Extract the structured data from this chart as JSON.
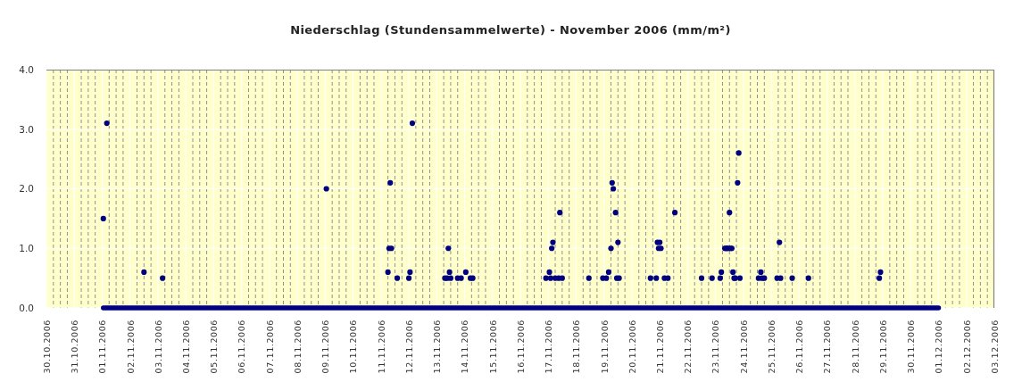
{
  "chart_data": {
    "type": "scatter",
    "title": "Niederschlag (Stundensammelwerte) - November 2006 (mm/m²)",
    "xlim": [
      "2006-10-30",
      "2006-12-03"
    ],
    "xticks": [
      {
        "value": "2006-10-30",
        "label": "30.10.2006"
      },
      {
        "value": "2006-10-30T06:00",
        "label": null
      },
      {
        "value": "2006-10-30T12:00",
        "label": null
      },
      {
        "value": "2006-10-30T18:00",
        "label": null
      },
      {
        "value": "2006-10-31",
        "label": "31.10.2006"
      },
      {
        "value": "2006-10-31T06:00",
        "label": null
      },
      {
        "value": "2006-10-31T12:00",
        "label": null
      },
      {
        "value": "2006-10-31T18:00",
        "label": null
      },
      {
        "value": "2006-11-01",
        "label": "01.11.2006"
      },
      {
        "value": "2006-11-01T06:00",
        "label": null
      },
      {
        "value": "2006-11-01T12:00",
        "label": null
      },
      {
        "value": "2006-11-01T18:00",
        "label": null
      },
      {
        "value": "2006-11-02",
        "label": "02.11.2006"
      },
      {
        "value": "2006-11-02T06:00",
        "label": null
      },
      {
        "value": "2006-11-02T12:00",
        "label": null
      },
      {
        "value": "2006-11-02T18:00",
        "label": null
      },
      {
        "value": "2006-11-03",
        "label": "03.11.2006"
      },
      {
        "value": "2006-11-03T06:00",
        "label": null
      },
      {
        "value": "2006-11-03T12:00",
        "label": null
      },
      {
        "value": "2006-11-03T18:00",
        "label": null
      },
      {
        "value": "2006-11-04",
        "label": "04.11.2006"
      },
      {
        "value": "2006-11-04T06:00",
        "label": null
      },
      {
        "value": "2006-11-04T12:00",
        "label": null
      },
      {
        "value": "2006-11-04T18:00",
        "label": null
      },
      {
        "value": "2006-11-05",
        "label": "05.11.2006"
      },
      {
        "value": "2006-11-05T06:00",
        "label": null
      },
      {
        "value": "2006-11-05T12:00",
        "label": null
      },
      {
        "value": "2006-11-05T18:00",
        "label": null
      },
      {
        "value": "2006-11-06",
        "label": "06.11.2006"
      },
      {
        "value": "2006-11-06T06:00",
        "label": null
      },
      {
        "value": "2006-11-06T12:00",
        "label": null
      },
      {
        "value": "2006-11-06T18:00",
        "label": null
      },
      {
        "value": "2006-11-07",
        "label": "07.11.2006"
      },
      {
        "value": "2006-11-07T06:00",
        "label": null
      },
      {
        "value": "2006-11-07T12:00",
        "label": null
      },
      {
        "value": "2006-11-07T18:00",
        "label": null
      },
      {
        "value": "2006-11-08",
        "label": "08.11.2006"
      },
      {
        "value": "2006-11-08T06:00",
        "label": null
      },
      {
        "value": "2006-11-08T12:00",
        "label": null
      },
      {
        "value": "2006-11-08T18:00",
        "label": null
      },
      {
        "value": "2006-11-09",
        "label": "09.11.2006"
      },
      {
        "value": "2006-11-09T06:00",
        "label": null
      },
      {
        "value": "2006-11-09T12:00",
        "label": null
      },
      {
        "value": "2006-11-09T18:00",
        "label": null
      },
      {
        "value": "2006-11-10",
        "label": "10.11.2006"
      },
      {
        "value": "2006-11-10T06:00",
        "label": null
      },
      {
        "value": "2006-11-10T12:00",
        "label": null
      },
      {
        "value": "2006-11-10T18:00",
        "label": null
      },
      {
        "value": "2006-11-11",
        "label": "11.11.2006"
      },
      {
        "value": "2006-11-11T06:00",
        "label": null
      },
      {
        "value": "2006-11-11T12:00",
        "label": null
      },
      {
        "value": "2006-11-11T18:00",
        "label": null
      },
      {
        "value": "2006-11-12",
        "label": "12.11.2006"
      },
      {
        "value": "2006-11-12T06:00",
        "label": null
      },
      {
        "value": "2006-11-12T12:00",
        "label": null
      },
      {
        "value": "2006-11-12T18:00",
        "label": null
      },
      {
        "value": "2006-11-13",
        "label": "13.11.2006"
      },
      {
        "value": "2006-11-13T06:00",
        "label": null
      },
      {
        "value": "2006-11-13T12:00",
        "label": null
      },
      {
        "value": "2006-11-13T18:00",
        "label": null
      },
      {
        "value": "2006-11-14",
        "label": "14.11.2006"
      },
      {
        "value": "2006-11-14T06:00",
        "label": null
      },
      {
        "value": "2006-11-14T12:00",
        "label": null
      },
      {
        "value": "2006-11-14T18:00",
        "label": null
      },
      {
        "value": "2006-11-15",
        "label": "15.11.2006"
      },
      {
        "value": "2006-11-15T06:00",
        "label": null
      },
      {
        "value": "2006-11-15T12:00",
        "label": null
      },
      {
        "value": "2006-11-15T18:00",
        "label": null
      },
      {
        "value": "2006-11-16",
        "label": "16.11.2006"
      },
      {
        "value": "2006-11-16T06:00",
        "label": null
      },
      {
        "value": "2006-11-16T12:00",
        "label": null
      },
      {
        "value": "2006-11-16T18:00",
        "label": null
      },
      {
        "value": "2006-11-17",
        "label": "17.11.2006"
      },
      {
        "value": "2006-11-17T06:00",
        "label": null
      },
      {
        "value": "2006-11-17T12:00",
        "label": null
      },
      {
        "value": "2006-11-17T18:00",
        "label": null
      },
      {
        "value": "2006-11-18",
        "label": "18.11.2006"
      },
      {
        "value": "2006-11-18T06:00",
        "label": null
      },
      {
        "value": "2006-11-18T12:00",
        "label": null
      },
      {
        "value": "2006-11-18T18:00",
        "label": null
      },
      {
        "value": "2006-11-19",
        "label": "19.11.2006"
      },
      {
        "value": "2006-11-19T06:00",
        "label": null
      },
      {
        "value": "2006-11-19T12:00",
        "label": null
      },
      {
        "value": "2006-11-19T18:00",
        "label": null
      },
      {
        "value": "2006-11-20",
        "label": "20.11.2006"
      },
      {
        "value": "2006-11-20T06:00",
        "label": null
      },
      {
        "value": "2006-11-20T12:00",
        "label": null
      },
      {
        "value": "2006-11-20T18:00",
        "label": null
      },
      {
        "value": "2006-11-21",
        "label": "21.11.2006"
      },
      {
        "value": "2006-11-21T06:00",
        "label": null
      },
      {
        "value": "2006-11-21T12:00",
        "label": null
      },
      {
        "value": "2006-11-21T18:00",
        "label": null
      },
      {
        "value": "2006-11-22",
        "label": "22.11.2006"
      },
      {
        "value": "2006-11-22T06:00",
        "label": null
      },
      {
        "value": "2006-11-22T12:00",
        "label": null
      },
      {
        "value": "2006-11-22T18:00",
        "label": null
      },
      {
        "value": "2006-11-23",
        "label": "23.11.2006"
      },
      {
        "value": "2006-11-23T06:00",
        "label": null
      },
      {
        "value": "2006-11-23T12:00",
        "label": null
      },
      {
        "value": "2006-11-23T18:00",
        "label": null
      },
      {
        "value": "2006-11-24",
        "label": "24.11.2006"
      },
      {
        "value": "2006-11-24T06:00",
        "label": null
      },
      {
        "value": "2006-11-24T12:00",
        "label": null
      },
      {
        "value": "2006-11-24T18:00",
        "label": null
      },
      {
        "value": "2006-11-25",
        "label": "25.11.2006"
      },
      {
        "value": "2006-11-25T06:00",
        "label": null
      },
      {
        "value": "2006-11-25T12:00",
        "label": null
      },
      {
        "value": "2006-11-25T18:00",
        "label": null
      },
      {
        "value": "2006-11-26",
        "label": "26.11.2006"
      },
      {
        "value": "2006-11-26T06:00",
        "label": null
      },
      {
        "value": "2006-11-26T12:00",
        "label": null
      },
      {
        "value": "2006-11-26T18:00",
        "label": null
      },
      {
        "value": "2006-11-27",
        "label": "27.11.2006"
      },
      {
        "value": "2006-11-27T06:00",
        "label": null
      },
      {
        "value": "2006-11-27T12:00",
        "label": null
      },
      {
        "value": "2006-11-27T18:00",
        "label": null
      },
      {
        "value": "2006-11-28",
        "label": "28.11.2006"
      },
      {
        "value": "2006-11-28T06:00",
        "label": null
      },
      {
        "value": "2006-11-28T12:00",
        "label": null
      },
      {
        "value": "2006-11-28T18:00",
        "label": null
      },
      {
        "value": "2006-11-29",
        "label": "29.11.2006"
      },
      {
        "value": "2006-11-29T06:00",
        "label": null
      },
      {
        "value": "2006-11-29T12:00",
        "label": null
      },
      {
        "value": "2006-11-29T18:00",
        "label": null
      },
      {
        "value": "2006-11-30",
        "label": "30.11.2006"
      },
      {
        "value": "2006-11-30T06:00",
        "label": null
      },
      {
        "value": "2006-11-30T12:00",
        "label": null
      },
      {
        "value": "2006-11-30T18:00",
        "label": null
      },
      {
        "value": "2006-12-01",
        "label": "01.12.2006"
      },
      {
        "value": "2006-12-01T06:00",
        "label": null
      },
      {
        "value": "2006-12-01T12:00",
        "label": null
      },
      {
        "value": "2006-12-01T18:00",
        "label": null
      },
      {
        "value": "2006-12-02",
        "label": "02.12.2006"
      },
      {
        "value": "2006-12-02T06:00",
        "label": null
      },
      {
        "value": "2006-12-02T12:00",
        "label": null
      },
      {
        "value": "2006-12-02T18:00",
        "label": null
      },
      {
        "value": "2006-12-03",
        "label": "03.12.2006"
      }
    ],
    "ylim": [
      0,
      4
    ],
    "yticks": [
      {
        "value": 0,
        "label": "0.0"
      },
      {
        "value": 1,
        "label": "1.0"
      },
      {
        "value": 2,
        "label": "2.0"
      },
      {
        "value": 3,
        "label": "3.0"
      },
      {
        "value": 4,
        "label": "4.0"
      }
    ],
    "grid": true,
    "marker": "circle",
    "series": [
      {
        "type": "line",
        "marker": "none",
        "color": "#000080",
        "x": [
          "2006-11-01T01:00",
          "2006-12-01T00:00"
        ],
        "values": [
          0,
          0
        ]
      },
      {
        "color": "#000080",
        "x": [
          "2006-11-01T01:00",
          "2006-11-01T04:00",
          "2006-11-02T12:00",
          "2006-11-03T04:00",
          "2006-11-09T01:00",
          "2006-11-11T06:00",
          "2006-11-11T07:00",
          "2006-11-11T08:00",
          "2006-11-11T09:00",
          "2006-11-11T14:00",
          "2006-11-12T00:00",
          "2006-11-12T01:00",
          "2006-11-12T03:00",
          "2006-11-13T07:00",
          "2006-11-13T09:00",
          "2006-11-13T10:00",
          "2006-11-13T11:00",
          "2006-11-13T12:00",
          "2006-11-13T18:00",
          "2006-11-13T21:00",
          "2006-11-14T01:00",
          "2006-11-14T05:00",
          "2006-11-14T07:00",
          "2006-11-16T22:00",
          "2006-11-17T01:00",
          "2006-11-17T02:00",
          "2006-11-17T03:00",
          "2006-11-17T04:00",
          "2006-11-17T06:00",
          "2006-11-17T09:00",
          "2006-11-17T10:00",
          "2006-11-17T12:00",
          "2006-11-18T11:00",
          "2006-11-18T23:00",
          "2006-11-19T02:00",
          "2006-11-19T04:00",
          "2006-11-19T06:00",
          "2006-11-19T07:00",
          "2006-11-19T08:00",
          "2006-11-19T10:00",
          "2006-11-19T11:00",
          "2006-11-19T12:00",
          "2006-11-19T13:00",
          "2006-11-20T16:00",
          "2006-11-20T21:00",
          "2006-11-20T22:00",
          "2006-11-20T23:00",
          "2006-11-21T00:00",
          "2006-11-21T01:00",
          "2006-11-21T04:00",
          "2006-11-21T07:00",
          "2006-11-21T13:00",
          "2006-11-22T12:00",
          "2006-11-22T21:00",
          "2006-11-23T04:00",
          "2006-11-23T05:00",
          "2006-11-23T08:00",
          "2006-11-23T09:00",
          "2006-11-23T10:00",
          "2006-11-23T11:00",
          "2006-11-23T12:00",
          "2006-11-23T13:00",
          "2006-11-23T14:00",
          "2006-11-23T15:00",
          "2006-11-23T16:00",
          "2006-11-23T17:00",
          "2006-11-23T19:00",
          "2006-11-23T20:00",
          "2006-11-23T21:00",
          "2006-11-24T13:00",
          "2006-11-24T15:00",
          "2006-11-24T16:00",
          "2006-11-24T18:00",
          "2006-11-25T05:00",
          "2006-11-25T07:00",
          "2006-11-25T08:00",
          "2006-11-25T18:00",
          "2006-11-26T08:00",
          "2006-11-28T21:00",
          "2006-11-28T22:00"
        ],
        "values": [
          1.5,
          3.1,
          0.6,
          0.5,
          2.0,
          0.6,
          1.0,
          2.1,
          1.0,
          0.5,
          0.5,
          0.6,
          3.1,
          0.5,
          0.5,
          1.0,
          0.6,
          0.5,
          0.5,
          0.5,
          0.6,
          0.5,
          0.5,
          0.5,
          0.6,
          0.5,
          1.0,
          1.1,
          0.5,
          0.5,
          1.6,
          0.5,
          0.5,
          0.5,
          0.5,
          0.6,
          1.0,
          2.1,
          2.0,
          1.6,
          0.5,
          1.1,
          0.5,
          0.5,
          0.5,
          1.1,
          1.0,
          1.1,
          1.0,
          0.5,
          0.5,
          1.6,
          0.5,
          0.5,
          0.5,
          0.6,
          1.0,
          1.0,
          1.0,
          1.0,
          1.6,
          1.0,
          1.0,
          0.6,
          0.5,
          0.5,
          2.1,
          2.6,
          0.5,
          0.5,
          0.6,
          0.5,
          0.5,
          0.5,
          1.1,
          0.5,
          0.5,
          0.5,
          0.5,
          0.6
        ]
      }
    ]
  }
}
